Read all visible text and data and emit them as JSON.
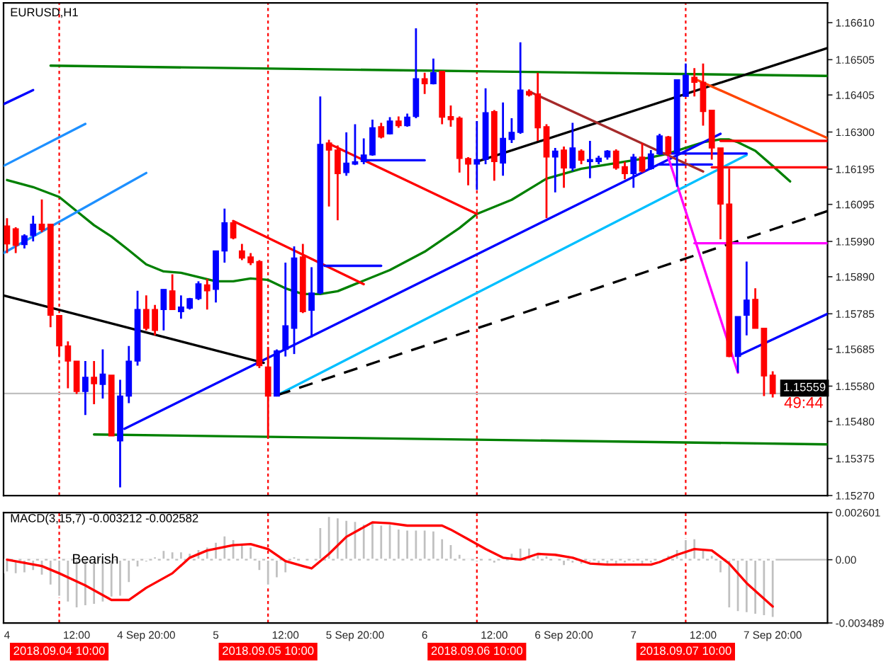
{
  "chart_data": [
    {
      "type": "candlestick",
      "title": "EURUSD,H1",
      "tick_labels": "y",
      "xlim": [
        "2018-09-04T03:36",
        "2018-09-08T02:18"
      ],
      "ylim": [
        1.1527,
        1.16666
      ],
      "yticks": [
        {
          "value": 1.1661,
          "label": "1.16610"
        },
        {
          "value": 1.16505,
          "label": "1.16505"
        },
        {
          "value": 1.16405,
          "label": "1.16405"
        },
        {
          "value": 1.163,
          "label": "1.16300"
        },
        {
          "value": 1.16195,
          "label": "1.16195"
        },
        {
          "value": 1.16095,
          "label": "1.16095"
        },
        {
          "value": 1.1599,
          "label": "1.15990"
        },
        {
          "value": 1.1589,
          "label": "1.15890"
        },
        {
          "value": 1.15785,
          "label": "1.15785"
        },
        {
          "value": 1.15685,
          "label": "1.15685"
        },
        {
          "value": 1.1558,
          "label": "1.15580"
        },
        {
          "value": 1.1548,
          "label": "1.15480"
        },
        {
          "value": 1.15375,
          "label": "1.15375"
        },
        {
          "value": 1.1527,
          "label": "1.15270"
        }
      ],
      "x": [
        "2018-09-04T04:00",
        "2018-09-04T05:00",
        "2018-09-04T06:00",
        "2018-09-04T07:00",
        "2018-09-04T08:00",
        "2018-09-04T09:00",
        "2018-09-04T10:00",
        "2018-09-04T11:00",
        "2018-09-04T12:00",
        "2018-09-04T13:00",
        "2018-09-04T14:00",
        "2018-09-04T15:00",
        "2018-09-04T16:00",
        "2018-09-04T17:00",
        "2018-09-04T18:00",
        "2018-09-04T19:00",
        "2018-09-04T20:00",
        "2018-09-04T21:00",
        "2018-09-04T22:00",
        "2018-09-04T23:00",
        "2018-09-05T00:00",
        "2018-09-05T01:00",
        "2018-09-05T02:00",
        "2018-09-05T03:00",
        "2018-09-05T04:00",
        "2018-09-05T05:00",
        "2018-09-05T06:00",
        "2018-09-05T07:00",
        "2018-09-05T08:00",
        "2018-09-05T09:00",
        "2018-09-05T10:00",
        "2018-09-05T11:00",
        "2018-09-05T12:00",
        "2018-09-05T13:00",
        "2018-09-05T14:00",
        "2018-09-05T15:00",
        "2018-09-05T16:00",
        "2018-09-05T17:00",
        "2018-09-05T18:00",
        "2018-09-05T19:00",
        "2018-09-05T20:00",
        "2018-09-05T21:00",
        "2018-09-05T22:00",
        "2018-09-05T23:00",
        "2018-09-06T00:00",
        "2018-09-06T01:00",
        "2018-09-06T02:00",
        "2018-09-06T03:00",
        "2018-09-06T04:00",
        "2018-09-06T05:00",
        "2018-09-06T06:00",
        "2018-09-06T07:00",
        "2018-09-06T08:00",
        "2018-09-06T09:00",
        "2018-09-06T10:00",
        "2018-09-06T11:00",
        "2018-09-06T12:00",
        "2018-09-06T13:00",
        "2018-09-06T14:00",
        "2018-09-06T15:00",
        "2018-09-06T16:00",
        "2018-09-06T17:00",
        "2018-09-06T18:00",
        "2018-09-06T19:00",
        "2018-09-06T20:00",
        "2018-09-06T21:00",
        "2018-09-06T22:00",
        "2018-09-06T23:00",
        "2018-09-07T00:00",
        "2018-09-07T01:00",
        "2018-09-07T02:00",
        "2018-09-07T03:00",
        "2018-09-07T04:00",
        "2018-09-07T05:00",
        "2018-09-07T06:00",
        "2018-09-07T07:00",
        "2018-09-07T08:00",
        "2018-09-07T09:00",
        "2018-09-07T10:00",
        "2018-09-07T11:00",
        "2018-09-07T12:00",
        "2018-09-07T13:00",
        "2018-09-07T14:00",
        "2018-09-07T15:00",
        "2018-09-07T16:00",
        "2018-09-07T17:00",
        "2018-09-07T18:00",
        "2018-09-07T19:00",
        "2018-09-07T20:00"
      ],
      "ohlc": [
        [
          1.16034,
          1.16056,
          1.15957,
          1.15983
        ],
        [
          1.16026,
          1.1603,
          1.15957,
          1.15979
        ],
        [
          1.15981,
          1.1601,
          1.1597,
          1.16006
        ],
        [
          1.16007,
          1.16063,
          1.1599,
          1.16039
        ],
        [
          1.16039,
          1.16109,
          1.16016,
          1.16023
        ],
        [
          1.16039,
          1.16039,
          1.15747,
          1.15781
        ],
        [
          1.1578,
          1.1578,
          1.15664,
          1.15694
        ],
        [
          1.15694,
          1.15707,
          1.15574,
          1.15651
        ],
        [
          1.15651,
          1.15651,
          1.15558,
          1.15565
        ],
        [
          1.15565,
          1.15651,
          1.15498,
          1.15605
        ],
        [
          1.15605,
          1.15651,
          1.15529,
          1.15587
        ],
        [
          1.15585,
          1.15684,
          1.15545,
          1.15614
        ],
        [
          1.15611,
          1.15611,
          1.15439,
          1.15439
        ],
        [
          1.15425,
          1.15598,
          1.15293,
          1.15552
        ],
        [
          1.15552,
          1.15694,
          1.15532,
          1.15651
        ],
        [
          1.15651,
          1.1585,
          1.15638,
          1.15797
        ],
        [
          1.15797,
          1.15837,
          1.15738,
          1.15744
        ],
        [
          1.15797,
          1.1581,
          1.15724,
          1.15738
        ],
        [
          1.15797,
          1.15854,
          1.15738,
          1.15854
        ],
        [
          1.1585,
          1.15897,
          1.15797,
          1.15797
        ],
        [
          1.15791,
          1.15837,
          1.15771,
          1.15804
        ],
        [
          1.15801,
          1.1583,
          1.15797,
          1.15828
        ],
        [
          1.15828,
          1.15877,
          1.15824,
          1.1587
        ],
        [
          1.15867,
          1.15884,
          1.15797,
          1.1585
        ],
        [
          1.15854,
          1.15963,
          1.15817,
          1.15963
        ],
        [
          1.15963,
          1.16083,
          1.1593,
          1.16043
        ],
        [
          1.16043,
          1.1605,
          1.15996,
          1.16
        ],
        [
          1.15963,
          1.15983,
          1.15937,
          1.15943
        ],
        [
          1.15946,
          1.15957,
          1.15923,
          1.1593
        ],
        [
          1.15933,
          1.15937,
          1.15631,
          1.15638
        ],
        [
          1.15634,
          1.15691,
          1.15432,
          1.15552
        ],
        [
          1.15552,
          1.15684,
          1.15552,
          1.1568
        ],
        [
          1.15684,
          1.1593,
          1.15664,
          1.15751
        ],
        [
          1.15744,
          1.15976,
          1.15671,
          1.15943
        ],
        [
          1.15946,
          1.15983,
          1.15787,
          1.15791
        ],
        [
          1.15795,
          1.15917,
          1.15718,
          1.15844
        ],
        [
          1.15844,
          1.16401,
          1.1584,
          1.16265
        ],
        [
          1.16269,
          1.16278,
          1.16089,
          1.16249
        ],
        [
          1.16249,
          1.16262,
          1.1605,
          1.16182
        ],
        [
          1.16185,
          1.16299,
          1.16176,
          1.16212
        ],
        [
          1.16209,
          1.16322,
          1.16206,
          1.16216
        ],
        [
          1.16216,
          1.16282,
          1.16209,
          1.16235
        ],
        [
          1.16235,
          1.16335,
          1.16233,
          1.16312
        ],
        [
          1.16315,
          1.16326,
          1.16282,
          1.16286
        ],
        [
          1.16295,
          1.16342,
          1.16293,
          1.16331
        ],
        [
          1.16331,
          1.16344,
          1.16312,
          1.16318
        ],
        [
          1.16318,
          1.16352,
          1.16315,
          1.16342
        ],
        [
          1.16344,
          1.16594,
          1.16339,
          1.16451
        ],
        [
          1.16451,
          1.16468,
          1.16408,
          1.16437
        ],
        [
          1.16437,
          1.16508,
          1.16435,
          1.16468
        ],
        [
          1.16472,
          1.16472,
          1.16322,
          1.16342
        ],
        [
          1.16344,
          1.16375,
          1.16315,
          1.16335
        ],
        [
          1.16339,
          1.16344,
          1.16185,
          1.16225
        ],
        [
          1.16225,
          1.16229,
          1.16149,
          1.16209
        ],
        [
          1.16209,
          1.16331,
          1.16136,
          1.16222
        ],
        [
          1.16222,
          1.16424,
          1.16209,
          1.16355
        ],
        [
          1.16358,
          1.16362,
          1.16162,
          1.16216
        ],
        [
          1.16212,
          1.16384,
          1.16176,
          1.16282
        ],
        [
          1.16279,
          1.16339,
          1.16269,
          1.16299
        ],
        [
          1.16299,
          1.16554,
          1.16295,
          1.16419
        ],
        [
          1.16415,
          1.16421,
          1.16401,
          1.16405
        ],
        [
          1.16408,
          1.16468,
          1.16275,
          1.16312
        ],
        [
          1.16315,
          1.16322,
          1.16056,
          1.16229
        ],
        [
          1.16229,
          1.16255,
          1.16129,
          1.16246
        ],
        [
          1.16249,
          1.16259,
          1.16142,
          1.16198
        ],
        [
          1.16198,
          1.16326,
          1.16189,
          1.16255
        ],
        [
          1.16246,
          1.16251,
          1.16209,
          1.1622
        ],
        [
          1.16216,
          1.16275,
          1.16169,
          1.16222
        ],
        [
          1.16216,
          1.16233,
          1.16209,
          1.16226
        ],
        [
          1.16229,
          1.16249,
          1.16222,
          1.16246
        ],
        [
          1.16246,
          1.16251,
          1.16193,
          1.16198
        ],
        [
          1.16202,
          1.16216,
          1.16166,
          1.16182
        ],
        [
          1.16182,
          1.16238,
          1.16142,
          1.16229
        ],
        [
          1.16229,
          1.16269,
          1.16185,
          1.16189
        ],
        [
          1.16196,
          1.16249,
          1.16193,
          1.16238
        ],
        [
          1.16238,
          1.16295,
          1.16235,
          1.16289
        ],
        [
          1.16286,
          1.16289,
          1.16233,
          1.16238
        ],
        [
          1.16242,
          1.16448,
          1.16145,
          1.16448
        ],
        [
          1.16401,
          1.16494,
          1.16401,
          1.16461
        ],
        [
          1.16455,
          1.16481,
          1.16401,
          1.16441
        ],
        [
          1.16441,
          1.16494,
          1.16318,
          1.16358
        ],
        [
          1.16362,
          1.16362,
          1.16222,
          1.16255
        ],
        [
          1.16255,
          1.16255,
          1.15996,
          1.16096
        ],
        [
          1.16096,
          1.16196,
          1.15662,
          1.15664
        ],
        [
          1.15664,
          1.15777,
          1.15618,
          1.15777
        ],
        [
          1.15781,
          1.15933,
          1.15724,
          1.15824
        ],
        [
          1.15826,
          1.15857,
          1.15744,
          1.15744
        ],
        [
          1.15744,
          1.15744,
          1.15552,
          1.15609
        ],
        [
          1.15611,
          1.15622,
          1.15548,
          1.15559
        ]
      ],
      "colors": [
        "#ff0000",
        "#ff0000",
        "#0000ff",
        "#0000ff",
        "#ff0000",
        "#ff0000",
        "#ff0000",
        "#ff0000",
        "#ff0000",
        "#0000ff",
        "#ff0000",
        "#0000ff",
        "#ff0000",
        "#0000ff",
        "#0000ff",
        "#0000ff",
        "#ff0000",
        "#ff0000",
        "#0000ff",
        "#ff0000",
        "#0000ff",
        "#0000ff",
        "#0000ff",
        "#ff0000",
        "#0000ff",
        "#0000ff",
        "#ff0000",
        "#ff0000",
        "#ff0000",
        "#ff0000",
        "#ff0000",
        "#0000ff",
        "#0000ff",
        "#0000ff",
        "#ff0000",
        "#0000ff",
        "#0000ff",
        "#ff0000",
        "#ff0000",
        "#0000ff",
        "#0000ff",
        "#0000ff",
        "#0000ff",
        "#ff0000",
        "#0000ff",
        "#ff0000",
        "#0000ff",
        "#0000ff",
        "#ff0000",
        "#0000ff",
        "#ff0000",
        "#ff0000",
        "#ff0000",
        "#ff0000",
        "#0000ff",
        "#0000ff",
        "#ff0000",
        "#0000ff",
        "#0000ff",
        "#0000ff",
        "#ff0000",
        "#ff0000",
        "#ff0000",
        "#0000ff",
        "#ff0000",
        "#0000ff",
        "#ff0000",
        "#0000ff",
        "#0000ff",
        "#0000ff",
        "#ff0000",
        "#ff0000",
        "#0000ff",
        "#ff0000",
        "#0000ff",
        "#0000ff",
        "#ff0000",
        "#0000ff",
        "#0000ff",
        "#ff0000",
        "#ff0000",
        "#ff0000",
        "#ff0000",
        "#ff0000",
        "#0000ff",
        "#0000ff",
        "#ff0000",
        "#ff0000",
        "#ff0000"
      ],
      "series": [
        {
          "type": "line",
          "color": "#008000",
          "x": [
            "2018-09-04T04:00",
            "2018-09-04T07:00",
            "2018-09-04T10:00",
            "2018-09-04T12:00",
            "2018-09-04T14:00",
            "2018-09-04T16:00",
            "2018-09-04T18:00",
            "2018-09-04T20:00",
            "2018-09-04T22:00",
            "2018-09-05T00:00",
            "2018-09-05T02:00",
            "2018-09-05T04:00",
            "2018-09-05T06:00",
            "2018-09-05T08:00",
            "2018-09-05T10:00",
            "2018-09-05T12:00",
            "2018-09-05T14:00",
            "2018-09-05T16:00",
            "2018-09-05T18:00",
            "2018-09-05T20:00",
            "2018-09-06T00:00",
            "2018-09-06T04:00",
            "2018-09-06T08:00",
            "2018-09-06T10:00",
            "2018-09-06T14:00",
            "2018-09-06T18:00",
            "2018-09-06T22:00",
            "2018-09-07T02:00",
            "2018-09-07T06:00",
            "2018-09-07T08:00",
            "2018-09-07T10:00",
            "2018-09-07T12:00",
            "2018-09-07T14:00",
            "2018-09-07T15:00",
            "2018-09-07T16:00",
            "2018-09-07T18:00",
            "2018-09-07T20:00",
            "2018-09-07T22:00"
          ],
          "values": [
            1.16164,
            1.16144,
            1.16116,
            1.16076,
            1.16036,
            1.16004,
            1.15965,
            1.15925,
            1.15905,
            1.15901,
            1.15889,
            1.15877,
            1.15877,
            1.15885,
            1.15881,
            1.15857,
            1.15841,
            1.15841,
            1.15849,
            1.15869,
            1.15909,
            1.15961,
            1.16028,
            1.16068,
            1.16108,
            1.16168,
            1.16196,
            1.16212,
            1.16228,
            1.16239,
            1.16255,
            1.16271,
            1.16279,
            1.16279,
            1.16271,
            1.16247,
            1.16204,
            1.1616
          ]
        },
        {
          "type": "line",
          "color": "#008000",
          "x": [
            "2018-09-04T09:00",
            "2018-09-08T02:18"
          ],
          "values": [
            1.16488,
            1.16459
          ]
        },
        {
          "type": "line",
          "color": "#008000",
          "x": [
            "2018-09-04T14:00",
            "2018-09-08T02:18"
          ],
          "values": [
            1.15443,
            1.15415
          ]
        },
        {
          "type": "line",
          "color": "#000000",
          "x": [
            "2018-09-04T03:36",
            "2018-09-05T09:30"
          ],
          "values": [
            1.15837,
            1.15646
          ]
        },
        {
          "type": "line",
          "color": "#0000ff",
          "x": [
            "2018-09-04T17:30",
            "2018-09-07T14:00"
          ],
          "values": [
            1.15459,
            1.16295
          ]
        },
        {
          "type": "line",
          "color": "#00bfff",
          "x": [
            "2018-09-05T11:00",
            "2018-09-07T17:00"
          ],
          "values": [
            1.15554,
            1.16235
          ]
        },
        {
          "type": "line",
          "color": "#0000ff",
          "x": [
            "2018-09-07T07:00",
            "2018-09-07T17:00"
          ],
          "values": [
            1.16239,
            1.16239
          ]
        },
        {
          "type": "line",
          "color": "#0000ff",
          "x": [
            "2018-09-07T07:00",
            "2018-09-07T13:00"
          ],
          "values": [
            1.16208,
            1.16208
          ]
        },
        {
          "type": "line",
          "color": "#000000",
          "x": [
            "2018-09-06T10:00",
            "2018-09-08T02:18"
          ],
          "values": [
            1.16216,
            1.16538
          ]
        },
        {
          "type": "line",
          "color": "#000000",
          "line_style": "dashed",
          "x": [
            "2018-09-05T11:00",
            "2018-09-08T02:18"
          ],
          "values": [
            1.15554,
            1.16076
          ]
        },
        {
          "type": "line",
          "color": "#ff0000",
          "x": [
            "2018-09-05T06:00",
            "2018-09-05T21:00"
          ],
          "values": [
            1.16048,
            1.15869
          ]
        },
        {
          "type": "line",
          "color": "#0000ff",
          "x": [
            "2018-09-05T16:30",
            "2018-09-05T23:00"
          ],
          "values": [
            1.15921,
            1.15921
          ]
        },
        {
          "type": "line",
          "color": "#ff0000",
          "x": [
            "2018-09-05T17:00",
            "2018-09-06T10:00"
          ],
          "values": [
            1.16267,
            1.16068
          ]
        },
        {
          "type": "line",
          "color": "#0000ff",
          "x": [
            "2018-09-05T21:00",
            "2018-09-06T04:00"
          ],
          "values": [
            1.1622,
            1.1622
          ]
        },
        {
          "type": "line",
          "color": "#a52a2a",
          "x": [
            "2018-09-06T16:00",
            "2018-09-07T12:00"
          ],
          "values": [
            1.16415,
            1.16188
          ]
        },
        {
          "type": "line",
          "color": "#ff4500",
          "x": [
            "2018-09-07T11:00",
            "2018-09-08T02:18"
          ],
          "values": [
            1.16451,
            1.16283
          ]
        },
        {
          "type": "line",
          "color": "#ff0000",
          "x": [
            "2018-09-07T14:00",
            "2018-09-08T02:18"
          ],
          "values": [
            1.16275,
            1.16275
          ]
        },
        {
          "type": "line",
          "color": "#ff0000",
          "x": [
            "2018-09-07T13:00",
            "2018-09-08T02:18"
          ],
          "values": [
            1.162,
            1.162
          ]
        },
        {
          "type": "line",
          "color": "#ff00ff",
          "x": [
            "2018-09-07T08:00",
            "2018-09-07T16:00"
          ],
          "values": [
            1.16228,
            1.15618
          ]
        },
        {
          "type": "line",
          "color": "#ff00ff",
          "x": [
            "2018-09-07T11:00",
            "2018-09-08T02:18"
          ],
          "values": [
            1.15985,
            1.15985
          ]
        },
        {
          "type": "line",
          "color": "#0000ff",
          "x": [
            "2018-09-07T16:00",
            "2018-09-08T02:18"
          ],
          "values": [
            1.15666,
            1.15785
          ]
        },
        {
          "type": "line",
          "color": "#1e90ff",
          "x": [
            "2018-09-04T03:36",
            "2018-09-04T13:00"
          ],
          "values": [
            1.16204,
            1.16323
          ]
        },
        {
          "type": "line",
          "color": "#1e90ff",
          "x": [
            "2018-09-04T03:36",
            "2018-09-04T20:00"
          ],
          "values": [
            1.15957,
            1.16184
          ]
        },
        {
          "type": "line",
          "color": "#0000ff",
          "x": [
            "2018-09-04T03:36",
            "2018-09-04T07:00"
          ],
          "values": [
            1.16379,
            1.16419
          ]
        }
      ],
      "ref_lines": [
        {
          "axis": "x",
          "value": "2018-09-04T10:00",
          "color": "#ff0000",
          "line_style": "dotted"
        },
        {
          "axis": "x",
          "value": "2018-09-05T10:00",
          "color": "#ff0000",
          "line_style": "dotted"
        },
        {
          "axis": "x",
          "value": "2018-09-06T10:00",
          "color": "#ff0000",
          "line_style": "dotted"
        },
        {
          "axis": "x",
          "value": "2018-09-07T10:00",
          "color": "#ff0000",
          "line_style": "dotted"
        },
        {
          "axis": "y",
          "value": 1.15559,
          "label": "1.15559",
          "color": "#c0c0c0",
          "line_style": "solid"
        }
      ],
      "annotations": [
        "49:44"
      ]
    },
    {
      "type": "bar",
      "title": "MACD(3,15,7) -0.003212 -0.002582",
      "xlim": [
        "2018-09-04T03:36",
        "2018-09-08T02:18"
      ],
      "xticks": [
        {
          "value": "2018-09-04T04:00",
          "label": "4"
        },
        {
          "value": "2018-09-04T12:00",
          "label": "12:00"
        },
        {
          "value": "2018-09-04T20:00",
          "label": "4 Sep 20:00"
        },
        {
          "value": "2018-09-05T04:00",
          "label": "5"
        },
        {
          "value": "2018-09-05T12:00",
          "label": "12:00"
        },
        {
          "value": "2018-09-05T20:00",
          "label": "5 Sep 20:00"
        },
        {
          "value": "2018-09-06T04:00",
          "label": "6"
        },
        {
          "value": "2018-09-06T12:00",
          "label": "12:00"
        },
        {
          "value": "2018-09-06T20:00",
          "label": "6 Sep 20:00"
        },
        {
          "value": "2018-09-07T04:00",
          "label": "7"
        },
        {
          "value": "2018-09-07T12:00",
          "label": "12:00"
        },
        {
          "value": "2018-09-07T20:00",
          "label": "7 Sep 20:00"
        }
      ],
      "ylim": [
        -0.003489,
        0.002601
      ],
      "yticks": [
        0.002601,
        {
          "value": 0,
          "label": "0.00"
        },
        -0.003489
      ],
      "x": [
        "2018-09-04T04:00",
        "2018-09-04T05:00",
        "2018-09-04T06:00",
        "2018-09-04T07:00",
        "2018-09-04T08:00",
        "2018-09-04T09:00",
        "2018-09-04T10:00",
        "2018-09-04T11:00",
        "2018-09-04T12:00",
        "2018-09-04T13:00",
        "2018-09-04T14:00",
        "2018-09-04T15:00",
        "2018-09-04T16:00",
        "2018-09-04T17:00",
        "2018-09-04T18:00",
        "2018-09-04T19:00",
        "2018-09-04T20:00",
        "2018-09-04T21:00",
        "2018-09-04T22:00",
        "2018-09-04T23:00",
        "2018-09-05T00:00",
        "2018-09-05T01:00",
        "2018-09-05T02:00",
        "2018-09-05T03:00",
        "2018-09-05T04:00",
        "2018-09-05T05:00",
        "2018-09-05T06:00",
        "2018-09-05T07:00",
        "2018-09-05T08:00",
        "2018-09-05T09:00",
        "2018-09-05T10:00",
        "2018-09-05T11:00",
        "2018-09-05T12:00",
        "2018-09-05T13:00",
        "2018-09-05T14:00",
        "2018-09-05T15:00",
        "2018-09-05T16:00",
        "2018-09-05T17:00",
        "2018-09-05T18:00",
        "2018-09-05T19:00",
        "2018-09-05T20:00",
        "2018-09-05T21:00",
        "2018-09-05T22:00",
        "2018-09-05T23:00",
        "2018-09-06T00:00",
        "2018-09-06T01:00",
        "2018-09-06T02:00",
        "2018-09-06T03:00",
        "2018-09-06T04:00",
        "2018-09-06T05:00",
        "2018-09-06T06:00",
        "2018-09-06T07:00",
        "2018-09-06T08:00",
        "2018-09-06T09:00",
        "2018-09-06T10:00",
        "2018-09-06T11:00",
        "2018-09-06T12:00",
        "2018-09-06T13:00",
        "2018-09-06T14:00",
        "2018-09-06T15:00",
        "2018-09-06T16:00",
        "2018-09-06T17:00",
        "2018-09-06T18:00",
        "2018-09-06T19:00",
        "2018-09-06T20:00",
        "2018-09-06T21:00",
        "2018-09-06T22:00",
        "2018-09-06T23:00",
        "2018-09-07T00:00",
        "2018-09-07T01:00",
        "2018-09-07T02:00",
        "2018-09-07T03:00",
        "2018-09-07T04:00",
        "2018-09-07T05:00",
        "2018-09-07T06:00",
        "2018-09-07T07:00",
        "2018-09-07T08:00",
        "2018-09-07T09:00",
        "2018-09-07T10:00",
        "2018-09-07T11:00",
        "2018-09-07T12:00",
        "2018-09-07T13:00",
        "2018-09-07T14:00",
        "2018-09-07T15:00",
        "2018-09-07T16:00",
        "2018-09-07T17:00",
        "2018-09-07T18:00",
        "2018-09-07T19:00",
        "2018-09-07T20:00"
      ],
      "series": [
        {
          "type": "bar",
          "color": "#c0c0c0",
          "values": [
            -0.0007,
            -0.0008,
            -0.00075,
            -0.00062,
            -0.00088,
            -0.00142,
            -0.00204,
            -0.00236,
            -0.00268,
            -0.00257,
            -0.00249,
            -0.00236,
            -0.00209,
            -0.00204,
            -0.00129,
            -0.00043,
            -0.00016,
            0.00019,
            0.00054,
            0.00046,
            0.00046,
            0.00038,
            0.00059,
            0.00072,
            0.00099,
            0.00134,
            0.00113,
            0.00086,
            0.00072,
            -0.00062,
            -0.00142,
            -0.00102,
            -0.00075,
            0.00019,
            5e-05,
            0.00011,
            0.0018,
            0.00241,
            0.00233,
            0.0022,
            0.00214,
            0.00198,
            0.00206,
            0.00193,
            0.00198,
            0.00172,
            0.00166,
            0.00166,
            0.00166,
            0.00161,
            0.00118,
            0.00086,
            0.00032,
            -8e-05,
            -0.00016,
            5e-05,
            -0.00021,
            0.00011,
            0.00038,
            0.00067,
            0.00067,
            0.00038,
            0.00024,
            -8e-05,
            -0.00035,
            -0.00021,
            -0.00027,
            -0.00016,
            -0.00027,
            -0.00029,
            -0.00035,
            -0.00021,
            -0.00016,
            -0.00035,
            -0.00021,
            0.00011,
            0.00027,
            0.00059,
            0.00113,
            0.00118,
            0.00064,
            0.00027,
            -0.00075,
            -0.00268,
            -0.00289,
            -0.00295,
            -0.00303,
            -0.00311,
            -0.003212
          ]
        },
        {
          "type": "line",
          "color": "#ff0000",
          "x": [
            "2018-09-04T04:00",
            "2018-09-04T08:00",
            "2018-09-04T10:00",
            "2018-09-04T13:00",
            "2018-09-04T16:00",
            "2018-09-04T18:00",
            "2018-09-04T20:00",
            "2018-09-04T23:00",
            "2018-09-05T01:00",
            "2018-09-05T03:00",
            "2018-09-05T06:00",
            "2018-09-05T08:00",
            "2018-09-05T10:00",
            "2018-09-05T12:00",
            "2018-09-05T14:00",
            "2018-09-05T15:00",
            "2018-09-05T17:00",
            "2018-09-05T19:00",
            "2018-09-05T22:00",
            "2018-09-06T00:00",
            "2018-09-06T02:00",
            "2018-09-06T06:00",
            "2018-09-06T07:00",
            "2018-09-06T09:00",
            "2018-09-06T11:00",
            "2018-09-06T13:00",
            "2018-09-06T15:00",
            "2018-09-06T17:00",
            "2018-09-06T19:00",
            "2018-09-06T21:00",
            "2018-09-06T23:00",
            "2018-09-07T01:00",
            "2018-09-07T06:00",
            "2018-09-07T07:00",
            "2018-09-07T09:00",
            "2018-09-07T11:00",
            "2018-09-07T13:00",
            "2018-09-07T15:00",
            "2018-09-07T17:00",
            "2018-09-07T20:00"
          ],
          "values": [
            0,
            -0.00035,
            -0.00075,
            -0.00142,
            -0.00222,
            -0.00222,
            -0.00155,
            -0.00075,
            0.00011,
            0.00051,
            0.0008,
            0.00086,
            0.00059,
            -8e-05,
            -0.00035,
            -0.00048,
            0.00032,
            0.00126,
            0.00206,
            0.00201,
            0.00188,
            0.00188,
            0.00166,
            0.00113,
            0.00059,
            0.00011,
            0,
            0.00032,
            0.00027,
            0.00011,
            -0.00021,
            -0.00027,
            -0.00027,
            -0.00013,
            0.00027,
            0.00059,
            0.00051,
            -0.00021,
            -0.00129,
            -0.002582
          ]
        }
      ],
      "ref_lines": [
        {
          "axis": "x",
          "value": "2018-09-04T10:00",
          "label": "2018.09.04 10:00",
          "color": "#ff0000",
          "line_style": "dotted"
        },
        {
          "axis": "x",
          "value": "2018-09-05T10:00",
          "label": "2018.09.05 10:00",
          "color": "#ff0000",
          "line_style": "dotted"
        },
        {
          "axis": "x",
          "value": "2018-09-06T10:00",
          "label": "2018.09.06 10:00",
          "color": "#ff0000",
          "line_style": "dotted"
        },
        {
          "axis": "x",
          "value": "2018-09-07T10:00",
          "label": "2018.09.07 10:00",
          "color": "#ff0000",
          "line_style": "dotted"
        },
        {
          "axis": "y",
          "value": 0,
          "color": "#c0c0c0",
          "line_style": "solid"
        }
      ],
      "annotations": [
        "Bearish"
      ]
    }
  ]
}
